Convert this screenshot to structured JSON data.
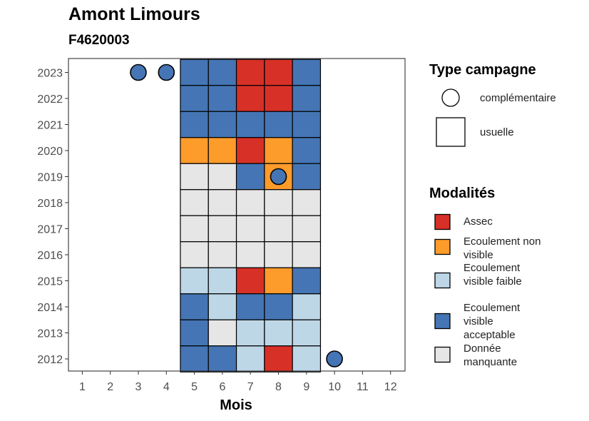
{
  "title": "Amont Limours",
  "subtitle": "F4620003",
  "colors": {
    "assec": "#d73027",
    "ecoulement_non_visible": "#fd9b2b",
    "ecoulement_visible_faible": "#bdd7e7",
    "ecoulement_visible_acceptable": "#4575b4",
    "donnee_manquante": "#e6e6e6"
  },
  "legend": {
    "campaign_title": "Type campagne",
    "campaign_items": [
      {
        "label": "complémentaire",
        "shape": "circle"
      },
      {
        "label": "usuelle",
        "shape": "square"
      }
    ],
    "modalites_title": "Modalités",
    "modalites_items": [
      {
        "key": "assec",
        "label": "Assec"
      },
      {
        "key": "ecoulement_non_visible",
        "label": "Ecoulement non visible"
      },
      {
        "key": "ecoulement_visible_faible",
        "label": "Ecoulement visible faible"
      },
      {
        "key": "ecoulement_visible_acceptable",
        "label": "Ecoulement visible acceptable"
      },
      {
        "key": "donnee_manquante",
        "label": "Donnée manquante"
      }
    ]
  },
  "chart_data": {
    "type": "heatmap",
    "title": "Amont Limours",
    "subtitle": "F4620003",
    "xlabel": "Mois",
    "ylabel": "",
    "x_ticks": [
      1,
      2,
      3,
      4,
      5,
      6,
      7,
      8,
      9,
      10,
      11,
      12
    ],
    "y_ticks": [
      2012,
      2013,
      2014,
      2015,
      2016,
      2017,
      2018,
      2019,
      2020,
      2021,
      2022,
      2023
    ],
    "grid": false,
    "legend_position": "right",
    "usuelle_cells": [
      {
        "year": 2023,
        "values": {
          "5": "ecoulement_visible_acceptable",
          "6": "ecoulement_visible_acceptable",
          "7": "assec",
          "8": "assec",
          "9": "ecoulement_visible_acceptable"
        }
      },
      {
        "year": 2022,
        "values": {
          "5": "ecoulement_visible_acceptable",
          "6": "ecoulement_visible_acceptable",
          "7": "assec",
          "8": "assec",
          "9": "ecoulement_visible_acceptable"
        }
      },
      {
        "year": 2021,
        "values": {
          "5": "ecoulement_visible_acceptable",
          "6": "ecoulement_visible_acceptable",
          "7": "ecoulement_visible_acceptable",
          "8": "ecoulement_visible_acceptable",
          "9": "ecoulement_visible_acceptable"
        }
      },
      {
        "year": 2020,
        "values": {
          "5": "ecoulement_non_visible",
          "6": "ecoulement_non_visible",
          "7": "assec",
          "8": "ecoulement_non_visible",
          "9": "ecoulement_visible_acceptable"
        }
      },
      {
        "year": 2019,
        "values": {
          "5": "donnee_manquante",
          "6": "donnee_manquante",
          "7": "ecoulement_visible_acceptable",
          "8": "ecoulement_non_visible",
          "9": "ecoulement_visible_acceptable"
        }
      },
      {
        "year": 2018,
        "values": {
          "5": "donnee_manquante",
          "6": "donnee_manquante",
          "7": "donnee_manquante",
          "8": "donnee_manquante",
          "9": "donnee_manquante"
        }
      },
      {
        "year": 2017,
        "values": {
          "5": "donnee_manquante",
          "6": "donnee_manquante",
          "7": "donnee_manquante",
          "8": "donnee_manquante",
          "9": "donnee_manquante"
        }
      },
      {
        "year": 2016,
        "values": {
          "5": "donnee_manquante",
          "6": "donnee_manquante",
          "7": "donnee_manquante",
          "8": "donnee_manquante",
          "9": "donnee_manquante"
        }
      },
      {
        "year": 2015,
        "values": {
          "5": "ecoulement_visible_faible",
          "6": "ecoulement_visible_faible",
          "7": "assec",
          "8": "ecoulement_non_visible",
          "9": "ecoulement_visible_acceptable"
        }
      },
      {
        "year": 2014,
        "values": {
          "5": "ecoulement_visible_acceptable",
          "6": "ecoulement_visible_faible",
          "7": "ecoulement_visible_acceptable",
          "8": "ecoulement_visible_acceptable",
          "9": "ecoulement_visible_faible"
        }
      },
      {
        "year": 2013,
        "values": {
          "5": "ecoulement_visible_acceptable",
          "6": "donnee_manquante",
          "7": "ecoulement_visible_faible",
          "8": "ecoulement_visible_faible",
          "9": "ecoulement_visible_faible"
        }
      },
      {
        "year": 2012,
        "values": {
          "5": "ecoulement_visible_acceptable",
          "6": "ecoulement_visible_acceptable",
          "7": "ecoulement_visible_faible",
          "8": "assec",
          "9": "ecoulement_visible_faible"
        }
      }
    ],
    "complementaire_points": [
      {
        "year": 2023,
        "month": 3,
        "value": "ecoulement_visible_acceptable"
      },
      {
        "year": 2023,
        "month": 4,
        "value": "ecoulement_visible_acceptable"
      },
      {
        "year": 2019,
        "month": 8,
        "value": "ecoulement_visible_acceptable"
      },
      {
        "year": 2012,
        "month": 10,
        "value": "ecoulement_visible_acceptable"
      }
    ]
  }
}
